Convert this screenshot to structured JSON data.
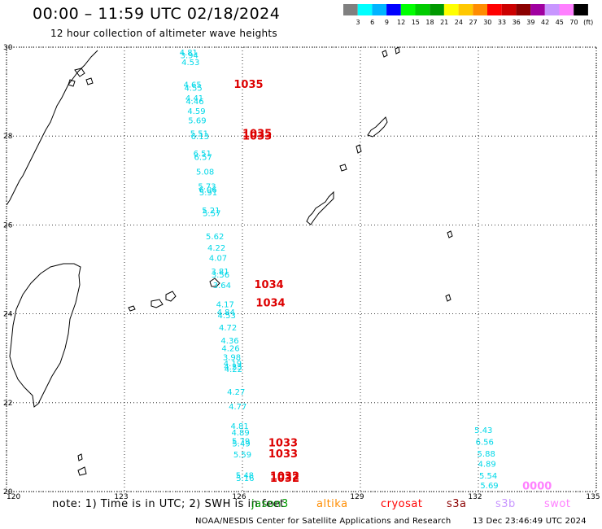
{
  "header": {
    "title": "00:00 – 11:59 UTC 02/18/2024",
    "subtitle": "12 hour collection of altimeter wave heights"
  },
  "legend": {
    "colors": [
      "#808080",
      "#00ffff",
      "#00b4ff",
      "#0000ff",
      "#00ff00",
      "#00cc00",
      "#009900",
      "#ffff00",
      "#ffc800",
      "#ff8c00",
      "#ff0000",
      "#cc0000",
      "#8b0000",
      "#a000a0",
      "#c896ff",
      "#ff80ff",
      "#000000"
    ],
    "labels": [
      "3",
      "6",
      "9",
      "12",
      "15",
      "18",
      "21",
      "24",
      "27",
      "30",
      "33",
      "36",
      "39",
      "42",
      "45",
      "70",
      "(ft)"
    ]
  },
  "map": {
    "lon_range": [
      120,
      135
    ],
    "lat_range": [
      20,
      30
    ],
    "x_ticks": [
      "120",
      "123",
      "126",
      "129",
      "132",
      "135"
    ],
    "y_ticks": [
      "30",
      "28",
      "26",
      "24",
      "22",
      "20"
    ],
    "coast_color": "#000000",
    "grid_style": "dotted"
  },
  "observations": {
    "color": "#00d8e8",
    "track_a": [
      {
        "lat": 29.82,
        "lon": 124.4,
        "v": "4.81"
      },
      {
        "lat": 29.75,
        "lon": 124.42,
        "v": "3.94"
      },
      {
        "lat": 29.6,
        "lon": 124.45,
        "v": "4.53"
      },
      {
        "lat": 29.09,
        "lon": 124.5,
        "v": "4.65"
      },
      {
        "lat": 29.02,
        "lon": 124.52,
        "v": "4.55"
      },
      {
        "lat": 28.79,
        "lon": 124.55,
        "v": "4.41"
      },
      {
        "lat": 28.72,
        "lon": 124.56,
        "v": "4.46"
      },
      {
        "lat": 28.5,
        "lon": 124.6,
        "v": "4.59"
      },
      {
        "lat": 28.29,
        "lon": 124.62,
        "v": "5.69"
      },
      {
        "lat": 27.99,
        "lon": 124.67,
        "v": "5.51"
      },
      {
        "lat": 27.93,
        "lon": 124.69,
        "v": "6.13"
      },
      {
        "lat": 27.55,
        "lon": 124.75,
        "v": "6.51"
      },
      {
        "lat": 27.46,
        "lon": 124.77,
        "v": "6.57"
      },
      {
        "lat": 27.13,
        "lon": 124.82,
        "v": "5.08"
      },
      {
        "lat": 26.8,
        "lon": 124.87,
        "v": "5.73"
      },
      {
        "lat": 26.73,
        "lon": 124.89,
        "v": "6.06"
      },
      {
        "lat": 26.67,
        "lon": 124.9,
        "v": "5.91"
      },
      {
        "lat": 26.26,
        "lon": 124.97,
        "v": "5.21"
      },
      {
        "lat": 26.2,
        "lon": 124.99,
        "v": "5.57"
      },
      {
        "lat": 25.68,
        "lon": 125.07,
        "v": "5.62"
      },
      {
        "lat": 25.42,
        "lon": 125.11,
        "v": "4.22"
      },
      {
        "lat": 25.19,
        "lon": 125.15,
        "v": "4.07"
      },
      {
        "lat": 24.89,
        "lon": 125.2,
        "v": "3.81"
      },
      {
        "lat": 24.82,
        "lon": 125.21,
        "v": "3.56"
      },
      {
        "lat": 24.58,
        "lon": 125.25,
        "v": "3.64"
      },
      {
        "lat": 24.15,
        "lon": 125.33,
        "v": "4.17"
      },
      {
        "lat": 23.97,
        "lon": 125.35,
        "v": "4.84"
      },
      {
        "lat": 23.9,
        "lon": 125.37,
        "v": "4.53"
      },
      {
        "lat": 23.63,
        "lon": 125.4,
        "v": "4.72"
      },
      {
        "lat": 23.33,
        "lon": 125.45,
        "v": "4.36"
      },
      {
        "lat": 23.16,
        "lon": 125.47,
        "v": "4.26"
      },
      {
        "lat": 22.96,
        "lon": 125.5,
        "v": "3.98"
      },
      {
        "lat": 22.82,
        "lon": 125.52,
        "v": "4.19"
      },
      {
        "lat": 22.75,
        "lon": 125.53,
        "v": "4.23"
      },
      {
        "lat": 22.69,
        "lon": 125.54,
        "v": "4.22"
      },
      {
        "lat": 22.18,
        "lon": 125.61,
        "v": "4.27"
      },
      {
        "lat": 21.85,
        "lon": 125.65,
        "v": "4.77"
      },
      {
        "lat": 21.41,
        "lon": 125.7,
        "v": "4.81"
      },
      {
        "lat": 21.26,
        "lon": 125.72,
        "v": "4.89"
      },
      {
        "lat": 21.07,
        "lon": 125.73,
        "v": "5.79"
      },
      {
        "lat": 21.02,
        "lon": 125.74,
        "v": "5.49"
      },
      {
        "lat": 20.77,
        "lon": 125.77,
        "v": "5.59"
      },
      {
        "lat": 20.3,
        "lon": 125.83,
        "v": "5.48"
      },
      {
        "lat": 20.24,
        "lon": 125.84,
        "v": "5.16"
      }
    ],
    "track_b": [
      {
        "lat": 21.32,
        "lon": 131.9,
        "v": "5.43"
      },
      {
        "lat": 21.05,
        "lon": 131.93,
        "v": "6.56"
      },
      {
        "lat": 20.79,
        "lon": 131.97,
        "v": "5.88"
      },
      {
        "lat": 20.56,
        "lon": 131.99,
        "v": "4.89"
      },
      {
        "lat": 20.29,
        "lon": 132.02,
        "v": "5.54"
      },
      {
        "lat": 20.07,
        "lon": 132.05,
        "v": "5.69"
      }
    ]
  },
  "pass_labels": [
    {
      "lat": 29.08,
      "lon": 125.78,
      "v": "1035",
      "color": "#dd0000"
    },
    {
      "lat": 27.98,
      "lon": 126.0,
      "v": "1035",
      "color": "#dd0000"
    },
    {
      "lat": 27.92,
      "lon": 126.0,
      "v": "1033",
      "color": "#dd0000"
    },
    {
      "lat": 24.58,
      "lon": 126.3,
      "v": "1034",
      "color": "#dd0000"
    },
    {
      "lat": 24.17,
      "lon": 126.34,
      "v": "1034",
      "color": "#dd0000"
    },
    {
      "lat": 21.02,
      "lon": 126.66,
      "v": "1033",
      "color": "#dd0000"
    },
    {
      "lat": 20.77,
      "lon": 126.66,
      "v": "1033",
      "color": "#dd0000"
    },
    {
      "lat": 20.27,
      "lon": 126.7,
      "v": "1032",
      "color": "#dd0000"
    },
    {
      "lat": 20.22,
      "lon": 126.7,
      "v": "1032",
      "color": "#dd0000"
    },
    {
      "lat": 20.05,
      "lon": 133.12,
      "v": "0000",
      "color": "#ff80ff"
    }
  ],
  "footer": {
    "note": "note:  1) Time is in UTC;  2) SWH is in feet",
    "satellites": [
      {
        "name": "jason3",
        "color": "#009900"
      },
      {
        "name": "altika",
        "color": "#ff8c00"
      },
      {
        "name": "cryosat",
        "color": "#ff0000"
      },
      {
        "name": "s3a",
        "color": "#8b0000"
      },
      {
        "name": "s3b",
        "color": "#c896ff"
      },
      {
        "name": "swot",
        "color": "#ff80ff"
      }
    ],
    "credit": "NOAA/NESDIS Center for Satellite Applications and Research",
    "timestamp": "13 Dec 23:46:49 UTC 2024"
  }
}
